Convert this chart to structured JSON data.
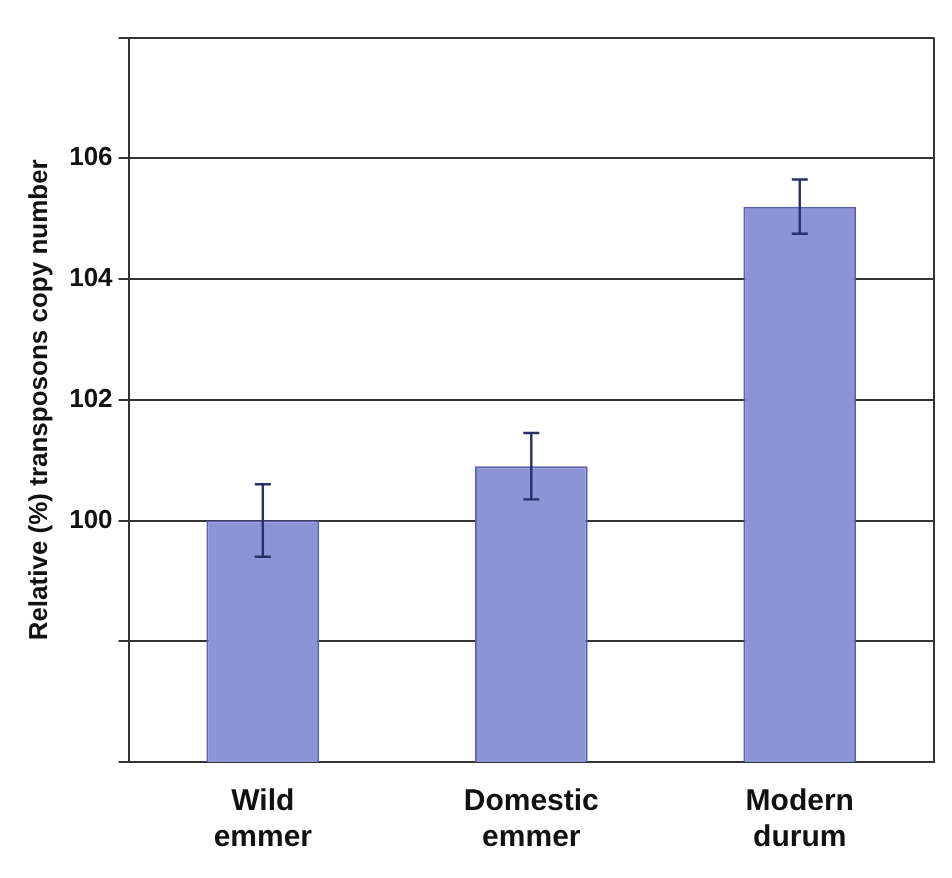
{
  "chart_data": {
    "type": "bar",
    "ylabel": "Relative (%) transposons copy number",
    "categories": [
      "Wild emmer",
      "Domestic emmer",
      "Modern durum"
    ],
    "values": [
      100.0,
      100.9,
      105.2
    ],
    "errors": [
      0.6,
      0.55,
      0.45
    ],
    "color": "#8c93d6",
    "ylim": [
      96,
      108
    ],
    "yticks": [
      {
        "value": 96,
        "label": null
      },
      {
        "value": 98,
        "label": null
      },
      100,
      102,
      104,
      106,
      {
        "value": 108,
        "label": null
      }
    ],
    "grid": "y",
    "legend": false
  }
}
